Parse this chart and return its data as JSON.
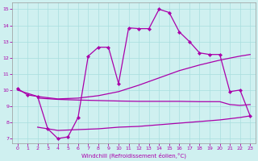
{
  "bg_color": "#cff0f0",
  "line_color": "#aa00aa",
  "xlabel": "Windchill (Refroidissement éolien,°C)",
  "xlim_min": -0.5,
  "xlim_max": 23.5,
  "ylim_min": 6.7,
  "ylim_max": 15.4,
  "x_ticks": [
    0,
    1,
    2,
    3,
    4,
    5,
    6,
    7,
    8,
    9,
    10,
    11,
    12,
    13,
    14,
    15,
    16,
    17,
    18,
    19,
    20,
    21,
    22,
    23
  ],
  "y_ticks": [
    7,
    8,
    9,
    10,
    11,
    12,
    13,
    14,
    15
  ],
  "marker_x": [
    0,
    1,
    2,
    3,
    4,
    5,
    6,
    7,
    8,
    9,
    10,
    11,
    12,
    13,
    14,
    15,
    16,
    17,
    18,
    19,
    20,
    21,
    22,
    23
  ],
  "marker_y": [
    10.1,
    9.7,
    9.6,
    7.6,
    7.0,
    7.1,
    8.3,
    12.1,
    12.65,
    12.65,
    10.4,
    13.85,
    13.8,
    13.8,
    15.0,
    14.8,
    13.6,
    13.0,
    12.3,
    12.2,
    12.2,
    9.9,
    10.0,
    8.4
  ],
  "slow_rise_x": [
    0,
    2,
    4,
    6,
    8,
    10,
    12,
    14,
    16,
    18,
    20,
    22,
    23
  ],
  "slow_rise_y": [
    10.0,
    9.6,
    9.45,
    9.5,
    9.65,
    9.9,
    10.3,
    10.75,
    11.2,
    11.55,
    11.85,
    12.1,
    12.2
  ],
  "flat_mid_x": [
    2,
    4,
    6,
    8,
    10,
    12,
    14,
    16,
    18,
    20,
    21,
    22,
    23
  ],
  "flat_mid_y": [
    9.5,
    9.42,
    9.38,
    9.35,
    9.32,
    9.3,
    9.3,
    9.3,
    9.28,
    9.28,
    9.1,
    9.05,
    9.1
  ],
  "flat_bot_x": [
    2,
    4,
    6,
    8,
    10,
    12,
    14,
    16,
    18,
    20,
    22,
    23
  ],
  "flat_bot_y": [
    7.7,
    7.5,
    7.55,
    7.6,
    7.7,
    7.75,
    7.85,
    7.95,
    8.05,
    8.15,
    8.3,
    8.4
  ]
}
